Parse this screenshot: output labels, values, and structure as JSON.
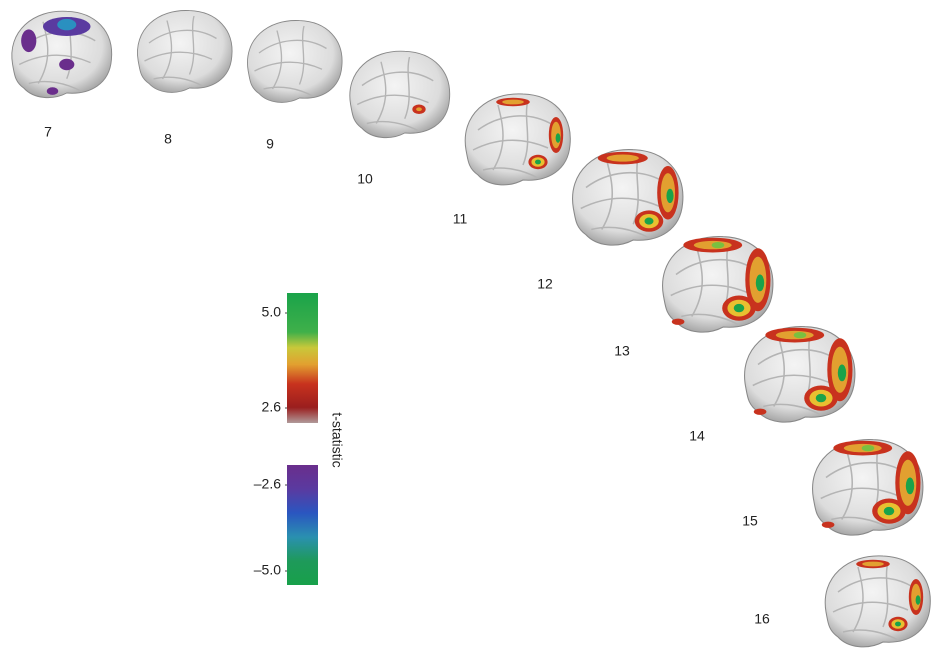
{
  "panels": [
    {
      "label": "7"
    },
    {
      "label": "8"
    },
    {
      "label": "9"
    },
    {
      "label": "10"
    },
    {
      "label": "11"
    },
    {
      "label": "12"
    },
    {
      "label": "13"
    },
    {
      "label": "14"
    },
    {
      "label": "15"
    },
    {
      "label": "16"
    }
  ],
  "colorbar": {
    "label": "t-statistic",
    "positive": {
      "ticks": [
        {
          "value": 5.0,
          "label": "5.0"
        },
        {
          "value": 2.6,
          "label": "2.6"
        }
      ]
    },
    "negative": {
      "ticks": [
        {
          "value": -2.6,
          "label": "–2.6"
        },
        {
          "value": -5.0,
          "label": "–5.0"
        }
      ]
    }
  }
}
